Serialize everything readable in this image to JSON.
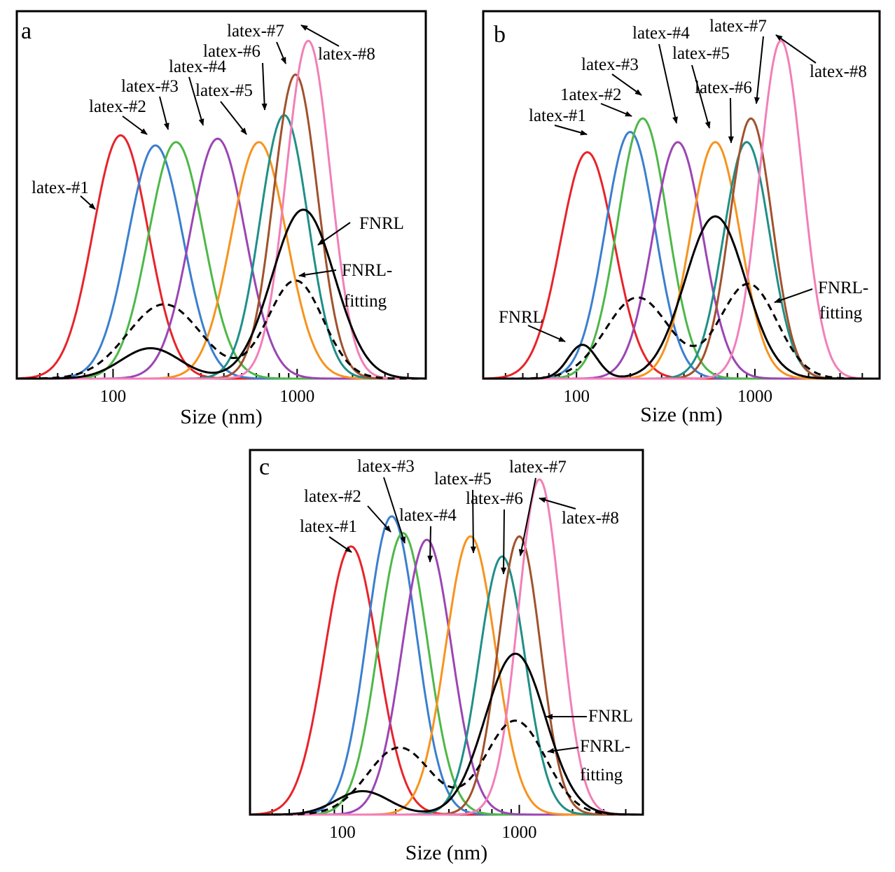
{
  "colors": {
    "latex-#1": "#e8232a",
    "latex-#2": "#3a7fcf",
    "latex-#3": "#4db848",
    "latex-#4": "#9b45b4",
    "latex-#5": "#f7931e",
    "latex-#6": "#1f8f88",
    "latex-#7": "#a0522d",
    "latex-#8": "#f27fb8",
    "FNRL": "#000000",
    "FNRL-fitting": "#000000"
  },
  "chart_data": [
    {
      "type": "line",
      "panel": "a",
      "xlabel": "Size (nm)",
      "ylabel": "",
      "xscale": "log",
      "xlim": [
        30,
        5000
      ],
      "ylim": [
        0,
        1.05
      ],
      "xticks": [
        100,
        1000
      ],
      "series": [
        {
          "name": "latex-#1",
          "peak_x": 110,
          "peak_y": 0.72,
          "width": 0.15
        },
        {
          "name": "latex-#2",
          "peak_x": 170,
          "peak_y": 0.69,
          "width": 0.15
        },
        {
          "name": "latex-#3",
          "peak_x": 220,
          "peak_y": 0.7,
          "width": 0.15
        },
        {
          "name": "latex-#4",
          "peak_x": 370,
          "peak_y": 0.71,
          "width": 0.15
        },
        {
          "name": "latex-#5",
          "peak_x": 620,
          "peak_y": 0.7,
          "width": 0.15
        },
        {
          "name": "latex-#6",
          "peak_x": 850,
          "peak_y": 0.78,
          "width": 0.13
        },
        {
          "name": "latex-#7",
          "peak_x": 980,
          "peak_y": 0.9,
          "width": 0.12
        },
        {
          "name": "latex-#8",
          "peak_x": 1150,
          "peak_y": 1.0,
          "width": 0.12
        },
        {
          "name": "FNRL",
          "components": [
            [
              160,
              0.09,
              0.16
            ],
            [
              1080,
              0.5,
              0.17
            ]
          ]
        },
        {
          "name": "FNRL-fitting",
          "components": [
            [
              190,
              0.22,
              0.2
            ],
            [
              980,
              0.29,
              0.15
            ]
          ]
        }
      ],
      "annotations": [
        {
          "text": "latex-#1",
          "target": "latex-#1"
        },
        {
          "text": "latex-#2",
          "target": "latex-#2"
        },
        {
          "text": "latex-#3",
          "target": "latex-#3"
        },
        {
          "text": "latex-#4",
          "target": "latex-#4"
        },
        {
          "text": "latex-#5",
          "target": "latex-#5"
        },
        {
          "text": "latex-#6",
          "target": "latex-#6"
        },
        {
          "text": "latex-#7",
          "target": "latex-#7"
        },
        {
          "text": "latex-#8",
          "target": "latex-#8"
        },
        {
          "text": "FNRL",
          "target": "FNRL"
        },
        {
          "text": "FNRL-",
          "target": "FNRL-fitting"
        },
        {
          "text": "fitting",
          "target": "FNRL-fitting"
        }
      ]
    },
    {
      "type": "line",
      "panel": "b",
      "xlabel": "Size (nm)",
      "ylabel": "",
      "xscale": "log",
      "xlim": [
        30,
        5000
      ],
      "ylim": [
        0,
        1.05
      ],
      "xticks": [
        100,
        1000
      ],
      "series": [
        {
          "name": "latex-#1",
          "peak_x": 115,
          "peak_y": 0.67,
          "width": 0.15
        },
        {
          "name": "latex-#2",
          "peak_x": 200,
          "peak_y": 0.73,
          "width": 0.14
        },
        {
          "name": "latex-#3",
          "peak_x": 235,
          "peak_y": 0.77,
          "width": 0.14
        },
        {
          "name": "latex-#4",
          "peak_x": 370,
          "peak_y": 0.7,
          "width": 0.14
        },
        {
          "name": "latex-#5",
          "peak_x": 600,
          "peak_y": 0.7,
          "width": 0.14
        },
        {
          "name": "latex-#6",
          "peak_x": 900,
          "peak_y": 0.7,
          "width": 0.13
        },
        {
          "name": "latex-#7",
          "peak_x": 950,
          "peak_y": 0.77,
          "width": 0.12
        },
        {
          "name": "latex-#8",
          "peak_x": 1400,
          "peak_y": 1.0,
          "width": 0.12
        },
        {
          "name": "FNRL",
          "components": [
            [
              108,
              0.1,
              0.08
            ],
            [
              600,
              0.48,
              0.17
            ]
          ]
        },
        {
          "name": "FNRL-fitting",
          "components": [
            [
              220,
              0.24,
              0.18
            ],
            [
              920,
              0.28,
              0.16
            ]
          ]
        }
      ],
      "annotations": [
        {
          "text": "latex-#1",
          "target": "latex-#1"
        },
        {
          "text": "1atex-#2",
          "target": "latex-#2"
        },
        {
          "text": "latex-#3",
          "target": "latex-#3"
        },
        {
          "text": "latex-#4",
          "target": "latex-#4"
        },
        {
          "text": "latex-#5",
          "target": "latex-#5"
        },
        {
          "text": "latex-#6",
          "target": "latex-#6"
        },
        {
          "text": "latex-#7",
          "target": "latex-#7"
        },
        {
          "text": "latex-#8",
          "target": "latex-#8"
        },
        {
          "text": "FNRL",
          "target": "FNRL"
        },
        {
          "text": "FNRL-",
          "target": "FNRL-fitting"
        },
        {
          "text": "fitting",
          "target": "FNRL-fitting"
        }
      ]
    },
    {
      "type": "line",
      "panel": "c",
      "xlabel": "Size (nm)",
      "ylabel": "",
      "xscale": "log",
      "xlim": [
        30,
        5000
      ],
      "ylim": [
        0,
        1.05
      ],
      "xticks": [
        100,
        1000
      ],
      "series": [
        {
          "name": "latex-#1",
          "peak_x": 112,
          "peak_y": 0.8,
          "width": 0.15
        },
        {
          "name": "latex-#2",
          "peak_x": 190,
          "peak_y": 0.89,
          "width": 0.14
        },
        {
          "name": "latex-#3",
          "peak_x": 220,
          "peak_y": 0.84,
          "width": 0.14
        },
        {
          "name": "latex-#4",
          "peak_x": 300,
          "peak_y": 0.82,
          "width": 0.14
        },
        {
          "name": "latex-#5",
          "peak_x": 530,
          "peak_y": 0.83,
          "width": 0.14
        },
        {
          "name": "latex-#6",
          "peak_x": 800,
          "peak_y": 0.77,
          "width": 0.13
        },
        {
          "name": "latex-#7",
          "peak_x": 1000,
          "peak_y": 0.83,
          "width": 0.12
        },
        {
          "name": "latex-#8",
          "peak_x": 1300,
          "peak_y": 1.0,
          "width": 0.12
        },
        {
          "name": "FNRL",
          "components": [
            [
              130,
              0.07,
              0.15
            ],
            [
              950,
              0.48,
              0.17
            ]
          ]
        },
        {
          "name": "FNRL-fitting",
          "components": [
            [
              210,
              0.2,
              0.18
            ],
            [
              950,
              0.28,
              0.17
            ]
          ]
        }
      ],
      "annotations": [
        {
          "text": "latex-#1",
          "target": "latex-#1"
        },
        {
          "text": "latex-#2",
          "target": "latex-#2"
        },
        {
          "text": "latex-#3",
          "target": "latex-#3"
        },
        {
          "text": "latex-#4",
          "target": "latex-#4"
        },
        {
          "text": "latex-#5",
          "target": "latex-#5"
        },
        {
          "text": "latex-#6",
          "target": "latex-#6"
        },
        {
          "text": "latex-#7",
          "target": "latex-#7"
        },
        {
          "text": "latex-#8",
          "target": "latex-#8"
        },
        {
          "text": "FNRL",
          "target": "FNRL"
        },
        {
          "text": "FNRL-",
          "target": "FNRL-fitting"
        },
        {
          "text": "fitting",
          "target": "FNRL-fitting"
        }
      ]
    }
  ]
}
